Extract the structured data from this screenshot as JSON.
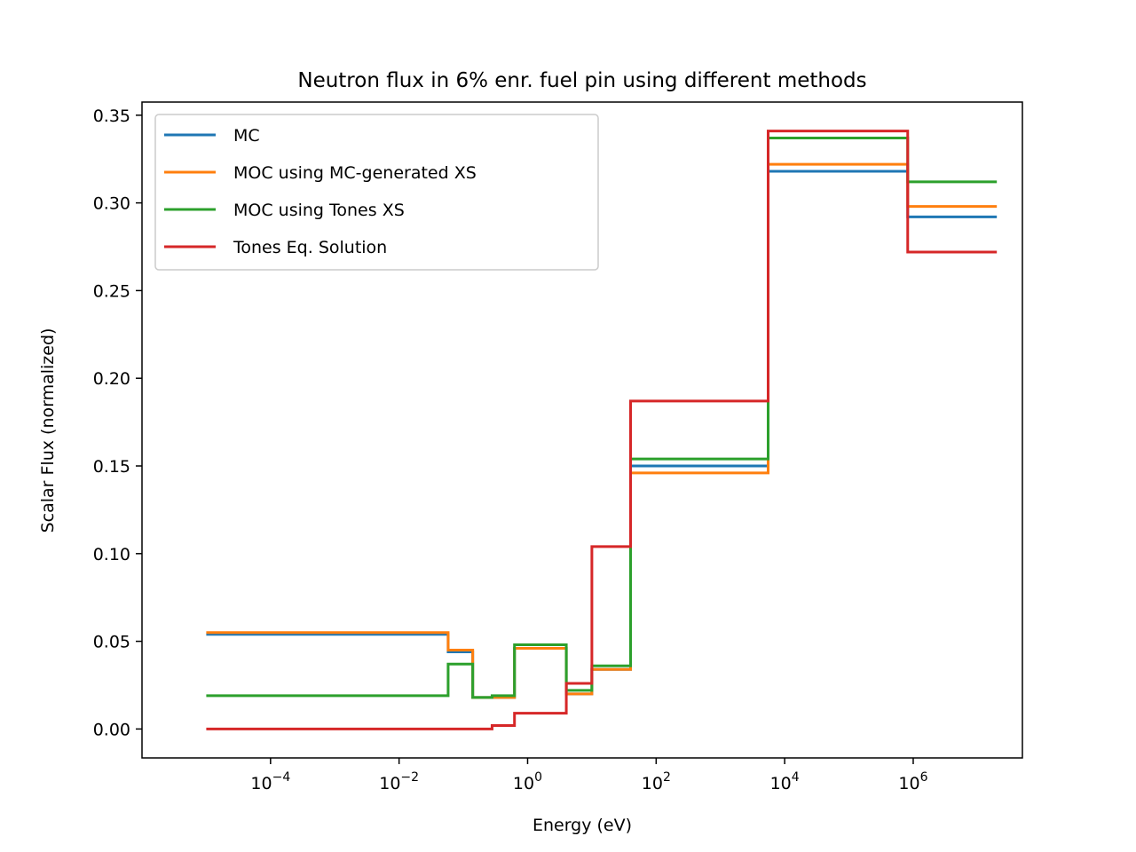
{
  "chart_data": {
    "type": "line",
    "step": "post",
    "title": "Neutron flux in 6% enr. fuel pin using different methods",
    "xlabel": "Energy (eV)",
    "ylabel": "Scalar Flux (normalized)",
    "xscale": "log",
    "xlim": [
      1e-06,
      50000000
    ],
    "ylim": [
      -0.0165,
      0.3575
    ],
    "grid": false,
    "legend": "top-left",
    "x_ticks": [
      {
        "value": 0.0001,
        "base": "10",
        "exp": "−4"
      },
      {
        "value": 0.01,
        "base": "10",
        "exp": "−2"
      },
      {
        "value": 1,
        "base": "10",
        "exp": "0"
      },
      {
        "value": 100,
        "base": "10",
        "exp": "2"
      },
      {
        "value": 10000,
        "base": "10",
        "exp": "4"
      },
      {
        "value": 1000000,
        "base": "10",
        "exp": "6"
      }
    ],
    "y_ticks": [
      {
        "value": 0.0,
        "label": "0.00"
      },
      {
        "value": 0.05,
        "label": "0.05"
      },
      {
        "value": 0.1,
        "label": "0.10"
      },
      {
        "value": 0.15,
        "label": "0.15"
      },
      {
        "value": 0.2,
        "label": "0.20"
      },
      {
        "value": 0.25,
        "label": "0.25"
      },
      {
        "value": 0.3,
        "label": "0.30"
      },
      {
        "value": 0.35,
        "label": "0.35"
      }
    ],
    "group_bounds": [
      1e-05,
      0.058,
      0.14,
      0.28,
      0.625,
      4.0,
      10.0,
      40.0,
      5530,
      821000,
      20000000
    ],
    "series": [
      {
        "name": "MC",
        "color": "#1f77b4",
        "values": [
          0.054,
          0.044,
          0.018,
          0.018,
          0.046,
          0.02,
          0.034,
          0.15,
          0.318,
          0.292
        ]
      },
      {
        "name": "MOC using MC-generated XS",
        "color": "#ff7f0e",
        "values": [
          0.055,
          0.045,
          0.018,
          0.018,
          0.046,
          0.02,
          0.034,
          0.146,
          0.322,
          0.298
        ]
      },
      {
        "name": "MOC using Tones XS",
        "color": "#2ca02c",
        "values": [
          0.019,
          0.037,
          0.018,
          0.019,
          0.048,
          0.022,
          0.036,
          0.154,
          0.337,
          0.312
        ]
      },
      {
        "name": "Tones Eq. Solution",
        "color": "#d62728",
        "values": [
          0.0,
          0.0,
          0.0,
          0.002,
          0.009,
          0.026,
          0.104,
          0.187,
          0.341,
          0.272
        ]
      }
    ]
  }
}
